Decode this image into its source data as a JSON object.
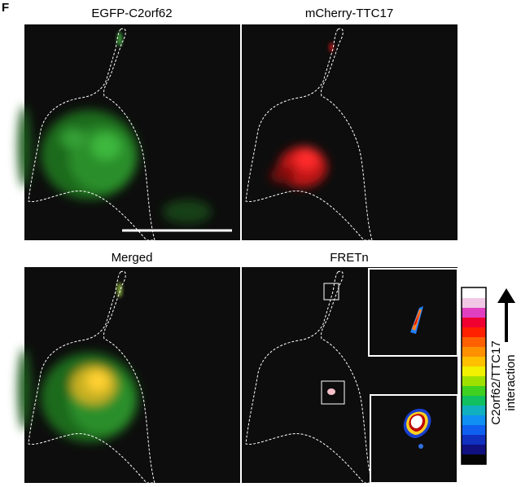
{
  "panel_label": "F",
  "panels": [
    {
      "title": "EGFP-C2orf62"
    },
    {
      "title": "mCherry-TTC17"
    },
    {
      "title": "Merged"
    },
    {
      "title": "FRETn"
    }
  ],
  "colorbar": {
    "label_lines": [
      "C2orf62/TTC17",
      "interaction"
    ]
  }
}
